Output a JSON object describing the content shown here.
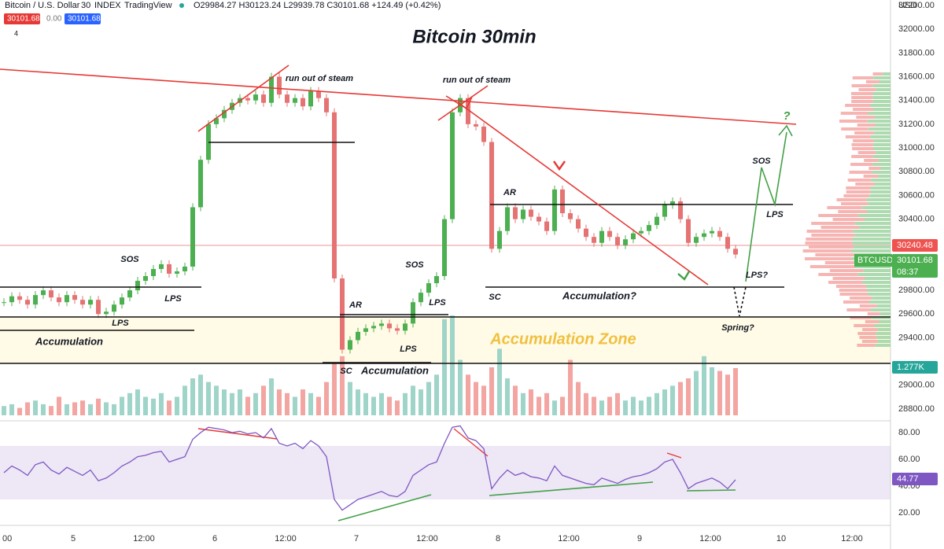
{
  "header": {
    "symbol": "Bitcoin / U.S. Dollar",
    "interval": "30",
    "source": "INDEX",
    "brand": "TradingView",
    "ohlc": "O29984.27 H30123.24 L29939.78 C30101.68 +124.49 (+0.42%)",
    "sell": "30101.68",
    "spread": "0.00",
    "buy": "30101.68",
    "indicators": "4"
  },
  "title": "Bitcoin 30min",
  "annotations": [
    "run out of steam",
    "run out of steam",
    "SOS",
    "LPS",
    "LPS",
    "Accumulation",
    "AR",
    "SC",
    "Accumulation",
    "LPS",
    "SOS",
    "LPS",
    "SC",
    "AR",
    "Accumulation?",
    "LPS?",
    "Spring?",
    "SOS",
    "LPS",
    "?",
    "Accumulation Zone"
  ],
  "price_axis": {
    "currency": "USD",
    "ticks": [
      {
        "value": 32200,
        "label": "32200.00"
      },
      {
        "value": 32000,
        "label": "32000.00"
      },
      {
        "value": 31800,
        "label": "31800.00"
      },
      {
        "value": 31600,
        "label": "31600.00"
      },
      {
        "value": 31400,
        "label": "31400.00"
      },
      {
        "value": 31200,
        "label": "31200.00"
      },
      {
        "value": 31000,
        "label": "31000.00"
      },
      {
        "value": 30800,
        "label": "30800.00"
      },
      {
        "value": 30600,
        "label": "30600.00"
      },
      {
        "value": 30400,
        "label": "30400.00"
      },
      {
        "value": 29800,
        "label": "29800.00"
      },
      {
        "value": 29600,
        "label": "29600.00"
      },
      {
        "value": 29400,
        "label": "29400.00"
      },
      {
        "value": 29000,
        "label": "29000.00"
      },
      {
        "value": 28800,
        "label": "28800.00"
      }
    ]
  },
  "price_labels": {
    "line_price": "30240.48",
    "symbol": "BTCUSD",
    "last": "30101.68",
    "countdown": "08:37",
    "volume": "1.277K",
    "rsi": "44.77"
  },
  "time_axis": [
    "00",
    "5",
    "12:00",
    "6",
    "12:00",
    "7",
    "12:00",
    "8",
    "12:00",
    "9",
    "12:00",
    "10",
    "12:00"
  ],
  "candles": {
    "close": [
      29700,
      29750,
      29720,
      29680,
      29760,
      29800,
      29740,
      29700,
      29760,
      29720,
      29680,
      29720,
      29600,
      29620,
      29680,
      29740,
      29800,
      29880,
      29920,
      29980,
      30020,
      29940,
      29960,
      30000,
      30500,
      30900,
      31200,
      31250,
      31320,
      31380,
      31420,
      31400,
      31450,
      31380,
      31600,
      31450,
      31380,
      31420,
      31350,
      31480,
      31420,
      31300,
      29900,
      29300,
      29380,
      29450,
      29480,
      29500,
      29520,
      29480,
      29460,
      29520,
      29700,
      29780,
      29860,
      29920,
      30400,
      31300,
      31420,
      31200,
      31180,
      31050,
      30150,
      30300,
      30500,
      30400,
      30480,
      30420,
      30380,
      30300,
      30650,
      30450,
      30400,
      30320,
      30250,
      30200,
      30300,
      30250,
      30180,
      30230,
      30280,
      30300,
      30350,
      30420,
      30520,
      30550,
      30400,
      30200,
      30250,
      30280,
      30300,
      30250,
      30150,
      30101.68
    ]
  },
  "volume": [
    0.25,
    0.3,
    0.2,
    0.35,
    0.4,
    0.3,
    0.25,
    0.5,
    0.3,
    0.35,
    0.4,
    0.3,
    0.45,
    0.35,
    0.3,
    0.5,
    0.6,
    0.7,
    0.5,
    0.45,
    0.6,
    0.4,
    0.5,
    0.8,
    1.0,
    1.1,
    0.9,
    0.8,
    0.7,
    0.6,
    0.7,
    0.5,
    0.6,
    0.8,
    1.0,
    0.7,
    0.6,
    0.5,
    0.7,
    0.6,
    0.5,
    0.9,
    1.4,
    1.6,
    0.9,
    0.7,
    0.6,
    0.5,
    0.6,
    0.5,
    0.4,
    0.6,
    0.8,
    0.7,
    0.9,
    1.1,
    2.6,
    2.7,
    1.5,
    1.1,
    0.9,
    0.8,
    1.3,
    1.8,
    1.0,
    0.8,
    0.6,
    0.7,
    0.5,
    0.6,
    0.4,
    0.5,
    1.5,
    0.9,
    0.6,
    0.5,
    0.4,
    0.5,
    0.6,
    0.4,
    0.5,
    0.4,
    0.5,
    0.6,
    0.7,
    0.8,
    0.9,
    1.0,
    1.2,
    1.6,
    1.3,
    1.2,
    1.1,
    1.277
  ],
  "rsi": {
    "values": [
      50,
      55,
      52,
      48,
      56,
      58,
      52,
      49,
      54,
      51,
      48,
      52,
      44,
      46,
      50,
      55,
      58,
      62,
      63,
      65,
      66,
      58,
      60,
      62,
      75,
      80,
      84,
      83,
      82,
      80,
      81,
      79,
      80,
      76,
      83,
      72,
      70,
      72,
      68,
      74,
      70,
      62,
      30,
      22,
      26,
      30,
      32,
      34,
      36,
      33,
      32,
      36,
      48,
      52,
      56,
      58,
      72,
      84,
      85,
      76,
      74,
      68,
      38,
      46,
      52,
      48,
      50,
      47,
      46,
      44,
      55,
      48,
      46,
      44,
      42,
      41,
      46,
      44,
      42,
      45,
      47,
      48,
      50,
      53,
      58,
      60,
      50,
      38,
      42,
      44,
      46,
      43,
      38,
      44.77
    ],
    "ticks": [
      {
        "value": 80,
        "label": "80.00"
      },
      {
        "value": 60,
        "label": "60.00"
      },
      {
        "value": 40,
        "label": "40.00"
      },
      {
        "value": 20,
        "label": "20.00"
      }
    ]
  }
}
